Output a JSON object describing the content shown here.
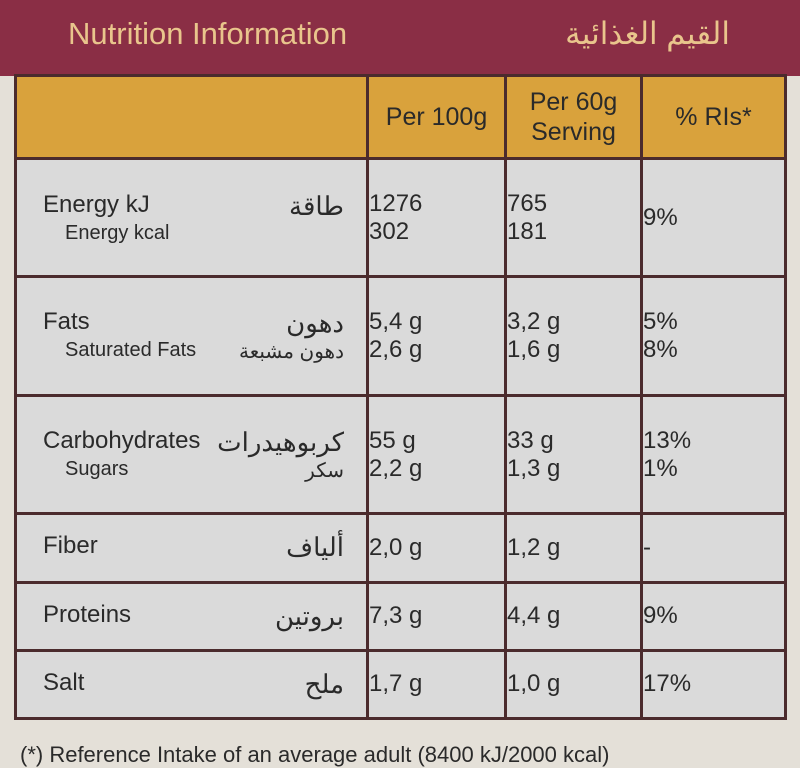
{
  "header": {
    "title": "Nutrition Information",
    "title_ar": "القيم الغذائية"
  },
  "table": {
    "columns": [
      "Per 100g",
      "Per 60g Serving",
      "% RIs*"
    ],
    "groups": [
      {
        "items": [
          {
            "label": "Energy kJ",
            "label_ar": "طاقة",
            "per_100g": "1276",
            "per_serving": "765",
            "ri": "9%"
          },
          {
            "label": "Energy kcal",
            "per_100g": "302",
            "per_serving": "181"
          }
        ]
      },
      {
        "items": [
          {
            "label": "Fats",
            "label_ar": "دهون",
            "per_100g": "5,4 g",
            "per_serving": "3,2 g",
            "ri": "5%"
          },
          {
            "label": "Saturated Fats",
            "label_ar": "دهون مشبعة",
            "per_100g": "2,6 g",
            "per_serving": "1,6 g",
            "ri": "8%"
          }
        ]
      },
      {
        "items": [
          {
            "label": "Carbohydrates",
            "label_ar": "كربوهيدرات",
            "per_100g": "55 g",
            "per_serving": "33 g",
            "ri": "13%"
          },
          {
            "label": "Sugars",
            "label_ar": "سكر",
            "per_100g": "2,2 g",
            "per_serving": "1,3 g",
            "ri": "1%"
          }
        ]
      },
      {
        "items": [
          {
            "label": "Fiber",
            "label_ar": "ألياف",
            "per_100g": "2,0 g",
            "per_serving": "1,2 g",
            "ri": "-"
          }
        ]
      },
      {
        "items": [
          {
            "label": "Proteins",
            "label_ar": "بروتين",
            "per_100g": "7,3 g",
            "per_serving": "4,4 g",
            "ri": "9%"
          }
        ]
      },
      {
        "items": [
          {
            "label": "Salt",
            "label_ar": "ملح",
            "per_100g": "1,7 g",
            "per_serving": "1,0 g",
            "ri": "17%"
          }
        ]
      }
    ]
  },
  "footnote": "(*) Reference Intake of an average adult (8400 kJ/2000 kcal)"
}
